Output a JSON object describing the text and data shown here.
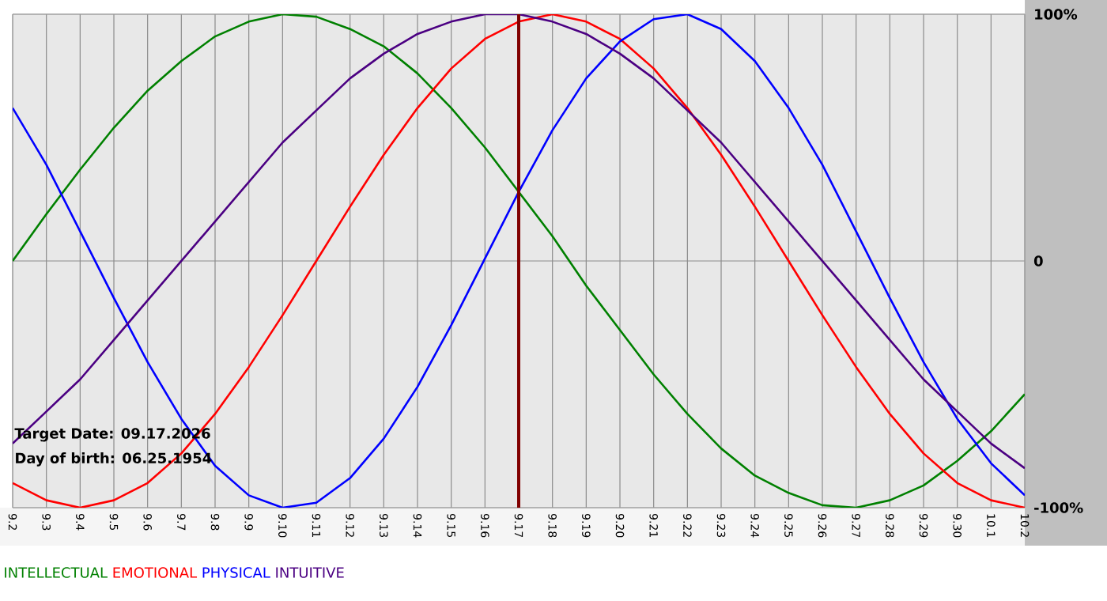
{
  "chart_data": {
    "type": "line",
    "categories": [
      "9.2",
      "9.3",
      "9.4",
      "9.5",
      "9.6",
      "9.7",
      "9.8",
      "9.9",
      "9.10",
      "9.11",
      "9.12",
      "9.13",
      "9.14",
      "9.15",
      "9.16",
      "9.17",
      "9.18",
      "9.19",
      "9.20",
      "9.21",
      "9.22",
      "9.23",
      "9.24",
      "9.25",
      "9.26",
      "9.27",
      "9.28",
      "9.29",
      "9.30",
      "10.1",
      "10.2"
    ],
    "series": [
      {
        "name": "INTELLECTUAL",
        "color": "#008000",
        "values": [
          0,
          19,
          37,
          54,
          69,
          81,
          91,
          97,
          100,
          99,
          94,
          87,
          76,
          62,
          46,
          28,
          10,
          -10,
          -28,
          -46,
          -62,
          -76,
          -87,
          -94,
          -99,
          -100,
          -97,
          -91,
          -81,
          -69,
          -54
        ]
      },
      {
        "name": "EMOTIONAL",
        "color": "#ff0000",
        "values": [
          -90,
          -97,
          -100,
          -97,
          -90,
          -78,
          -62,
          -43,
          -22,
          0,
          22,
          43,
          62,
          78,
          90,
          97,
          100,
          97,
          90,
          78,
          62,
          43,
          22,
          0,
          -22,
          -43,
          -62,
          -78,
          -90,
          -97,
          -100
        ]
      },
      {
        "name": "PHYSICAL",
        "color": "#0000ff",
        "values": [
          62,
          39,
          12,
          -15,
          -41,
          -64,
          -83,
          -95,
          -100,
          -98,
          -88,
          -72,
          -51,
          -26,
          1,
          28,
          53,
          74,
          89,
          98,
          100,
          94,
          81,
          62,
          39,
          12,
          -15,
          -41,
          -64,
          -82,
          -95
        ]
      },
      {
        "name": "INTUITIVE",
        "color": "#4b0082",
        "values": [
          -74,
          -61,
          -48,
          -32,
          -16,
          0,
          16,
          32,
          48,
          61,
          74,
          84,
          92,
          97,
          100,
          100,
          97,
          92,
          84,
          74,
          61,
          48,
          32,
          16,
          0,
          -16,
          -32,
          -48,
          -61,
          -74,
          -84
        ]
      }
    ],
    "ylim": [
      -100,
      100
    ],
    "yticks": [
      {
        "value": -100,
        "label": "-100%"
      },
      0,
      {
        "value": 100,
        "label": "100%"
      }
    ],
    "grid": true,
    "legend": "bottom",
    "ref_lines": [
      {
        "axis": "x",
        "value": "9.17",
        "color": "#800000"
      }
    ],
    "annotations": [
      "Target Date: 09.17.2026",
      "Day of birth: 06.25.1954"
    ]
  }
}
